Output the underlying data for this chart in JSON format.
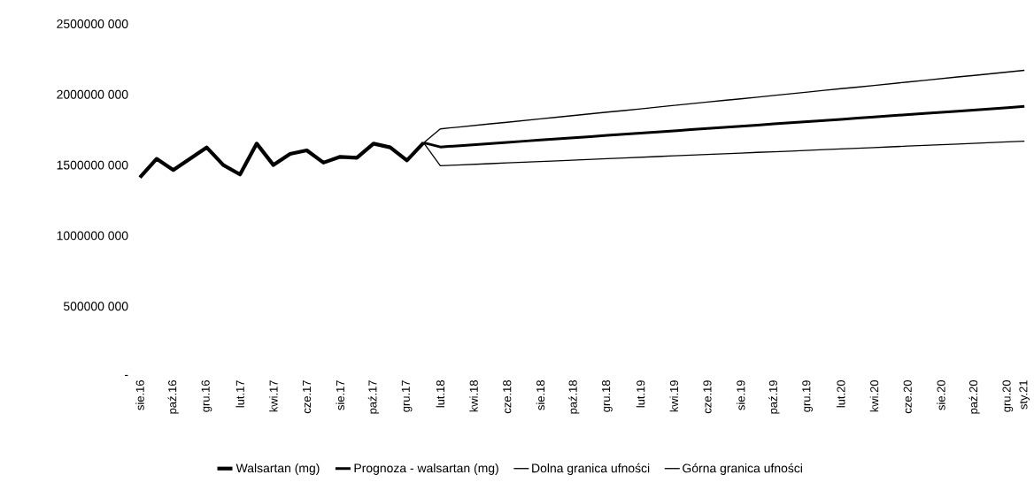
{
  "chart_data": {
    "type": "line",
    "categories": [
      "sie.16",
      null,
      "paź.16",
      null,
      "gru.16",
      null,
      "lut.17",
      null,
      "kwi.17",
      null,
      "cze.17",
      null,
      "sie.17",
      null,
      "paź.17",
      null,
      "gru.17",
      null,
      "lut.18",
      null,
      "kwi.18",
      null,
      "cze.18",
      null,
      "sie.18",
      null,
      "paź.18",
      null,
      "gru.18",
      null,
      "lut.19",
      null,
      "kwi.19",
      null,
      "cze.19",
      null,
      "sie.19",
      null,
      "paź.19",
      null,
      "gru.19",
      null,
      "lut.20",
      null,
      "kwi.20",
      null,
      "cze.20",
      null,
      "sie.20",
      null,
      "paź.20",
      null,
      "gru.20",
      "sty.21"
    ],
    "series": [
      {
        "name": "Walsartan (mg)",
        "color": "#000000",
        "values": [
          1412000000,
          1544000000,
          1465000000,
          1545000000,
          1625000000,
          1500000000,
          1433000000,
          1652000000,
          1500000000,
          1579000000,
          1604000000,
          1517000000,
          1558000000,
          1552000000,
          1652000000,
          1625000000,
          1533000000,
          1658000000,
          null,
          null,
          null,
          null,
          null,
          null,
          null,
          null,
          null,
          null,
          null,
          null,
          null,
          null,
          null,
          null,
          null,
          null,
          null,
          null,
          null,
          null,
          null,
          null,
          null,
          null,
          null,
          null,
          null,
          null,
          null,
          null,
          null,
          null,
          null,
          null
        ]
      },
      {
        "name": "Prognoza - walsartan (mg)",
        "color": "#000000",
        "values": [
          null,
          null,
          null,
          null,
          null,
          null,
          null,
          null,
          null,
          null,
          null,
          null,
          null,
          null,
          null,
          null,
          null,
          1658000000,
          1628000000,
          1636000000,
          1644000000,
          1652000000,
          1660000000,
          1669000000,
          1677000000,
          1685000000,
          1693000000,
          1701000000,
          1710000000,
          1718000000,
          1726000000,
          1734000000,
          1742000000,
          1751000000,
          1759000000,
          1767000000,
          1775000000,
          1783000000,
          1792000000,
          1800000000,
          1808000000,
          1816000000,
          1824000000,
          1833000000,
          1841000000,
          1849000000,
          1857000000,
          1865000000,
          1874000000,
          1882000000,
          1890000000,
          1898000000,
          1906000000,
          1915000000
        ]
      },
      {
        "name": "Dolna granica ufności",
        "color": "#000000",
        "values": [
          null,
          null,
          null,
          null,
          null,
          null,
          null,
          null,
          null,
          null,
          null,
          null,
          null,
          null,
          null,
          null,
          null,
          1658000000,
          1495000000,
          1500000000,
          1505000000,
          1510000000,
          1515000000,
          1520000000,
          1525000000,
          1530000000,
          1535000000,
          1540000000,
          1545000000,
          1550000000,
          1555000000,
          1560000000,
          1565000000,
          1570000000,
          1575000000,
          1580000000,
          1585000000,
          1590000000,
          1594000000,
          1599000000,
          1604000000,
          1609000000,
          1614000000,
          1619000000,
          1624000000,
          1629000000,
          1634000000,
          1639000000,
          1644000000,
          1649000000,
          1654000000,
          1659000000,
          1664000000,
          1669000000
        ]
      },
      {
        "name": "Górna granica ufności",
        "color": "#000000",
        "values": [
          null,
          null,
          null,
          null,
          null,
          null,
          null,
          null,
          null,
          null,
          null,
          null,
          null,
          null,
          null,
          null,
          null,
          1658000000,
          1756000000,
          1768000000,
          1780000000,
          1792000000,
          1803000000,
          1815000000,
          1827000000,
          1839000000,
          1851000000,
          1863000000,
          1875000000,
          1886000000,
          1898000000,
          1910000000,
          1922000000,
          1934000000,
          1946000000,
          1958000000,
          1969000000,
          1981000000,
          1993000000,
          2005000000,
          2017000000,
          2029000000,
          2041000000,
          2052000000,
          2064000000,
          2076000000,
          2088000000,
          2100000000,
          2112000000,
          2124000000,
          2135000000,
          2147000000,
          2159000000,
          2171000000
        ]
      }
    ],
    "ylim": [
      0,
      2500000000
    ],
    "yticks": [
      {
        "value": 0,
        "label": "-"
      },
      {
        "value": 500000000,
        "label": "500000 000"
      },
      {
        "value": 1000000000,
        "label": "1000000 000"
      },
      {
        "value": 1500000000,
        "label": "1500000 000"
      },
      {
        "value": 2000000000,
        "label": "2000000 000"
      },
      {
        "value": 2500000000,
        "label": "2500000 000"
      }
    ],
    "legend": "bottom",
    "marker": "none"
  }
}
